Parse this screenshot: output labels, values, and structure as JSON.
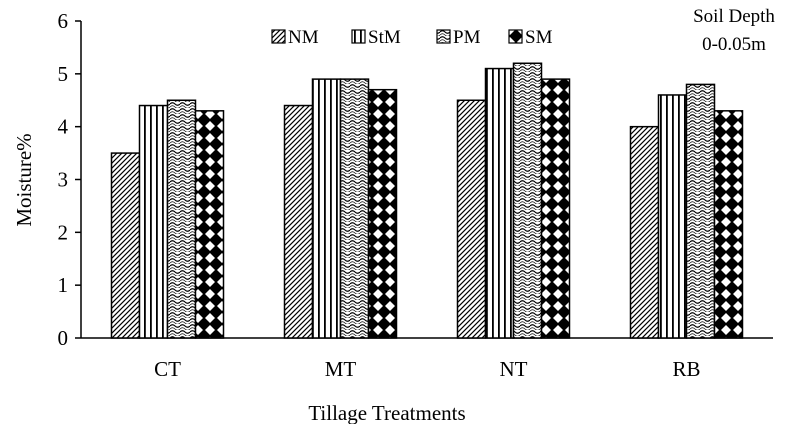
{
  "chart_data": {
    "type": "bar",
    "title": "",
    "xlabel": "Tillage Treatments",
    "ylabel": "Moisture%",
    "ylim": [
      0,
      6
    ],
    "yticks": [
      "0",
      "1",
      "2",
      "3",
      "4",
      "5",
      "6"
    ],
    "categories": [
      "CT",
      "MT",
      "NT",
      "RB"
    ],
    "series": [
      {
        "name": "NM",
        "pattern": "diagonal-hatch",
        "values": [
          3.5,
          4.4,
          4.5,
          4.0
        ]
      },
      {
        "name": "StM",
        "pattern": "vertical-lines",
        "values": [
          4.4,
          4.9,
          5.1,
          4.6
        ]
      },
      {
        "name": "PM",
        "pattern": "wave",
        "values": [
          4.5,
          4.9,
          5.2,
          4.8
        ]
      },
      {
        "name": "SM",
        "pattern": "diamond-checker",
        "values": [
          4.3,
          4.7,
          4.9,
          4.3
        ]
      }
    ],
    "legend_position": "top",
    "grid": false,
    "annotation": {
      "line1": "Soil Depth",
      "line2": "0-0.05m"
    },
    "colors": {
      "bar_stroke": "#000000",
      "axis": "#000000",
      "background": "#ffffff"
    }
  }
}
